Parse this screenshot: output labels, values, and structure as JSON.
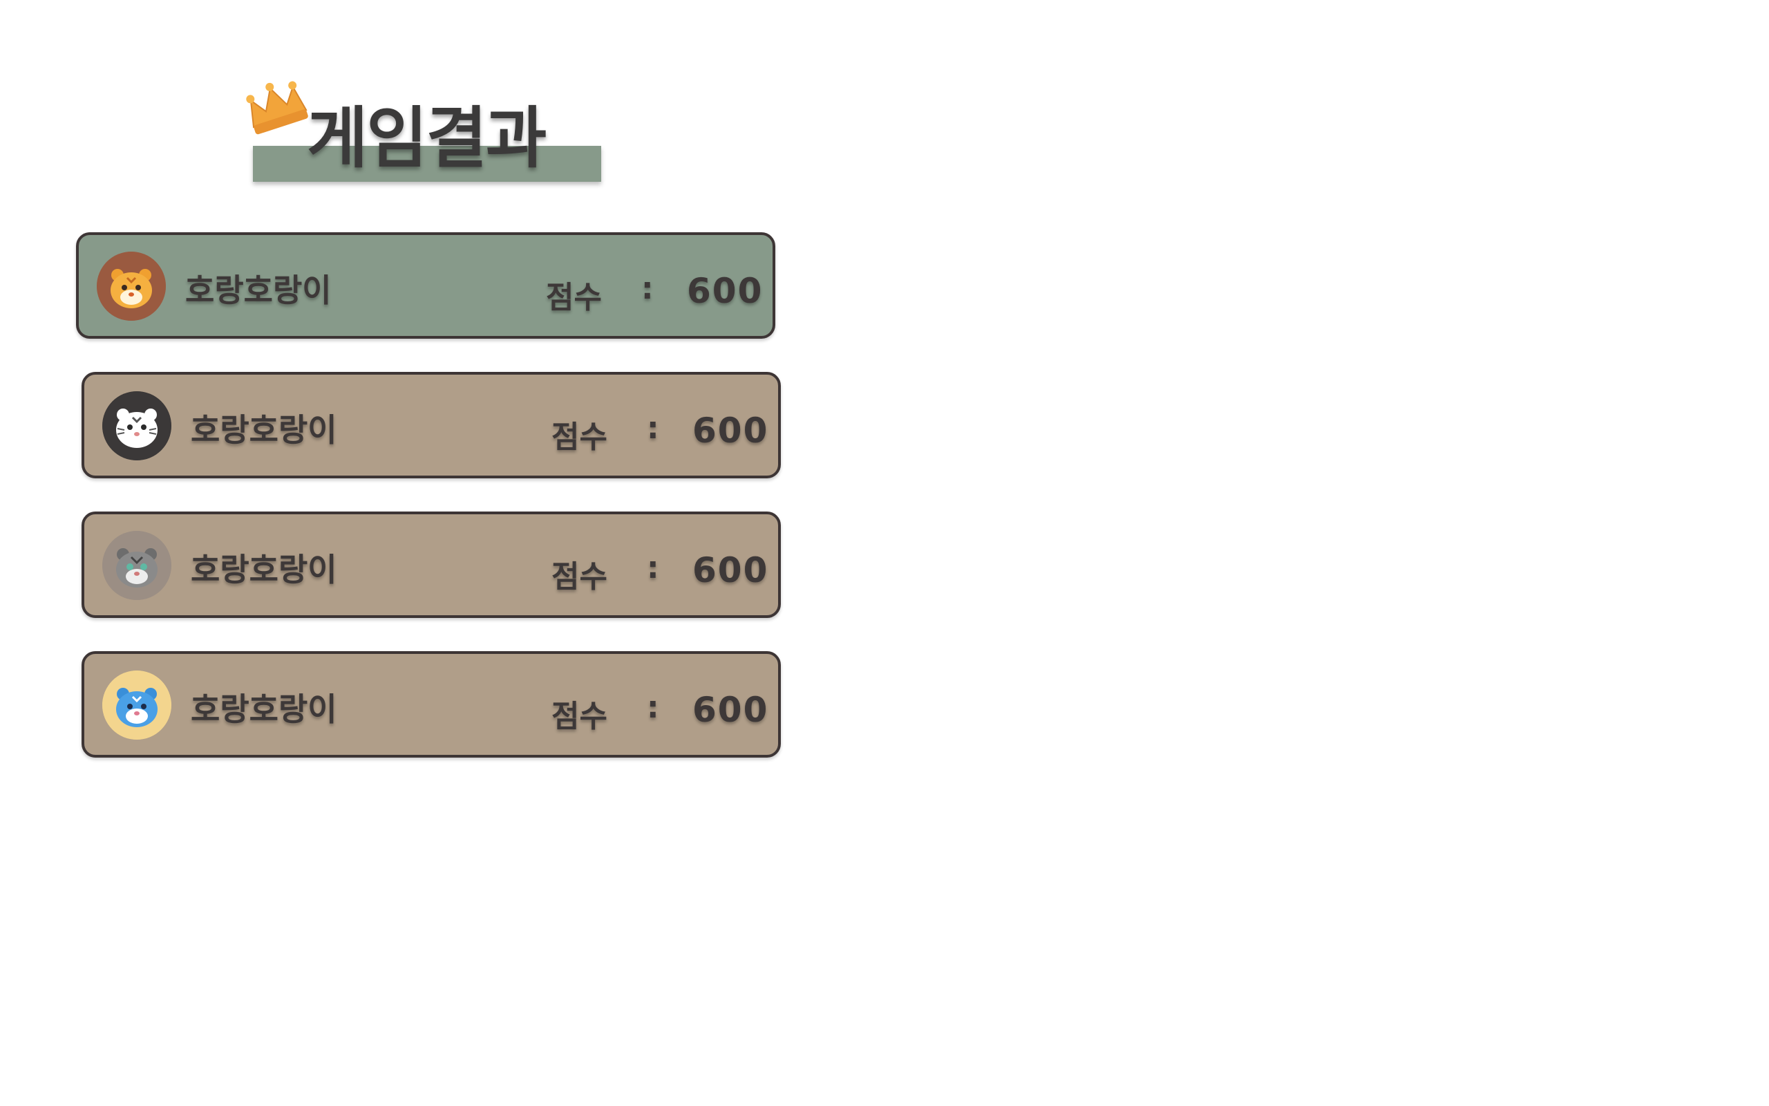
{
  "title": "게임결과",
  "colors": {
    "title_bar": "#879a8a",
    "winner_row": "#879a8a",
    "other_row": "#b09e89",
    "border": "#3d3535",
    "text": "#3d3838"
  },
  "results": [
    {
      "name": "호랑호랑이",
      "score_label": "점수",
      "separator": ":",
      "score": "600",
      "avatar_icon": "orange-tiger-avatar-icon",
      "avatar_bg": "#9a5a40"
    },
    {
      "name": "호랑호랑이",
      "score_label": "점수",
      "separator": ":",
      "score": "600",
      "avatar_icon": "white-tiger-avatar-icon",
      "avatar_bg": "#3b3838"
    },
    {
      "name": "호랑호랑이",
      "score_label": "점수",
      "separator": ":",
      "score": "600",
      "avatar_icon": "gray-tiger-avatar-icon",
      "avatar_bg": "#9b8e84"
    },
    {
      "name": "호랑호랑이",
      "score_label": "점수",
      "separator": ":",
      "score": "600",
      "avatar_icon": "blue-tiger-avatar-icon",
      "avatar_bg": "#f3d58e"
    }
  ]
}
